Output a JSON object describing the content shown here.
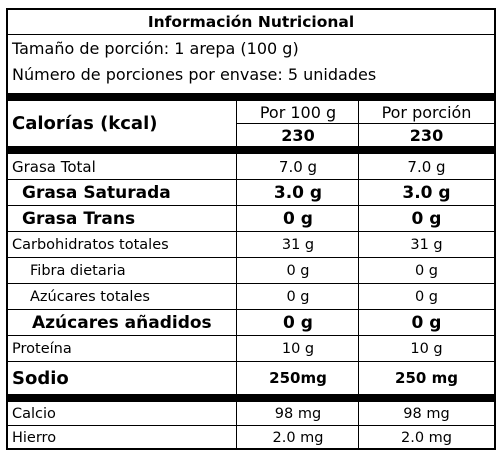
{
  "title": "Información Nutricional",
  "serving_size": "Tamaño de porción: 1 arepa (100 g)",
  "servings_per_container": "Número de porciones por envase: 5 unidades",
  "columns": {
    "per100": "Por 100 g",
    "perServing": "Por porción"
  },
  "calories": {
    "label": "Calorías (kcal)",
    "per100": "230",
    "perServing": "230"
  },
  "rows": [
    {
      "label": "Grasa Total",
      "per100": "7.0 g",
      "perServing": "7.0 g"
    },
    {
      "label": "Grasa Saturada",
      "per100": "3.0 g",
      "perServing": "3.0 g"
    },
    {
      "label": "Grasa Trans",
      "per100": "0 g",
      "perServing": "0 g"
    },
    {
      "label": "Carbohidratos totales",
      "per100": "31 g",
      "perServing": "31 g"
    },
    {
      "label": "Fibra dietaria",
      "per100": "0 g",
      "perServing": "0 g"
    },
    {
      "label": "Azúcares totales",
      "per100": "0 g",
      "perServing": "0 g"
    },
    {
      "label": "Azúcares añadidos",
      "per100": "0 g",
      "perServing": "0 g"
    },
    {
      "label": "Proteína",
      "per100": "10 g",
      "perServing": "10 g"
    },
    {
      "label": "Sodio",
      "per100": "250mg",
      "perServing": "250 mg"
    },
    {
      "label": "Calcio",
      "per100": "98 mg",
      "perServing": "98 mg"
    },
    {
      "label": "Hierro",
      "per100": "2.0 mg",
      "perServing": "2.0 mg"
    }
  ]
}
